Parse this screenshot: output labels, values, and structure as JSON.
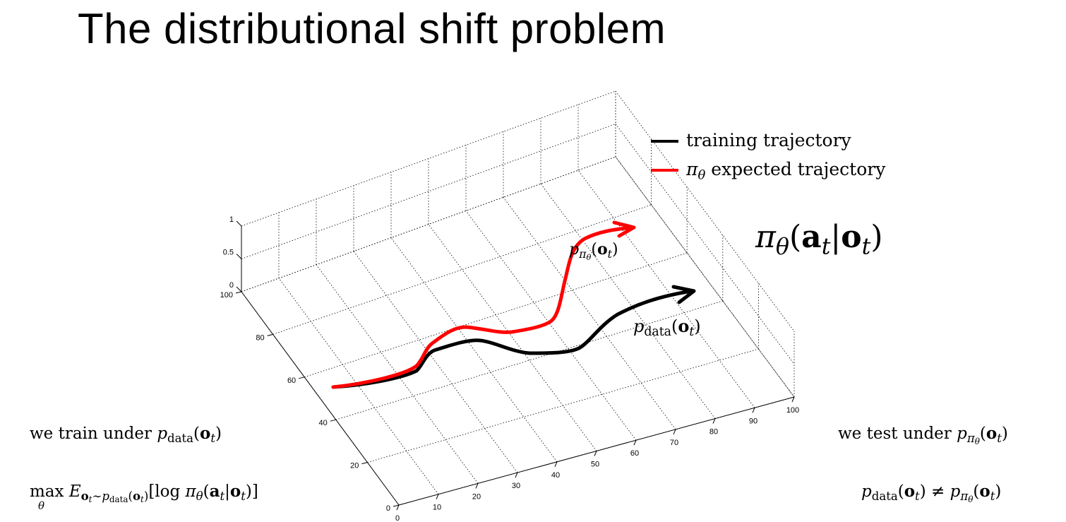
{
  "slide": {
    "title": "The distributional shift problem"
  },
  "legend": {
    "items": [
      {
        "key": "training",
        "label": "training trajectory",
        "color": "#000000"
      },
      {
        "key": "policy",
        "label": "expected trajectory",
        "symbol": "π",
        "symbol_sub": "θ",
        "color": "#ff0000"
      }
    ]
  },
  "labels": {
    "policy_formula": "πθ(at|ot)",
    "p_pi": "pπθ(ot)",
    "p_data": "pdata(ot)"
  },
  "bottom_text": {
    "train_prefix": "we train under",
    "test_prefix": "we test under",
    "objective": "max_θ E_{ot∼pdata(ot)}[log πθ(at|ot)]",
    "inequality": "pdata(ot) ≠ pπθ(ot)"
  },
  "axes": {
    "z_ticks": [
      "1",
      "0.5",
      "0"
    ],
    "y_ticks": [
      "100",
      "80",
      "60",
      "40",
      "20",
      "0"
    ],
    "x_ticks": [
      "0",
      "10",
      "20",
      "30",
      "40",
      "50",
      "60",
      "70",
      "80",
      "90",
      "100"
    ]
  }
}
